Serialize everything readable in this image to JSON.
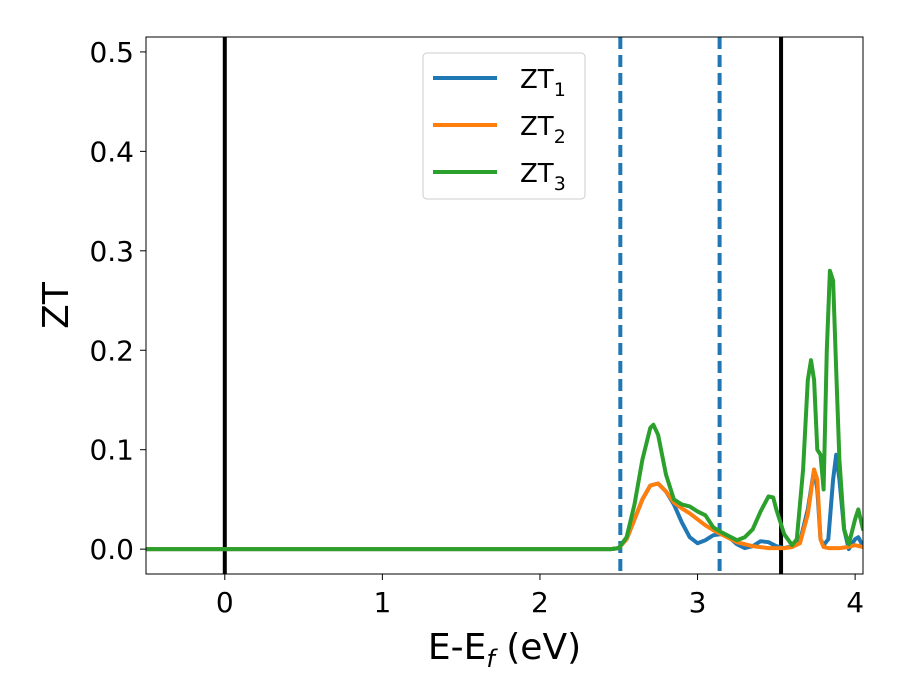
{
  "chart_data": {
    "type": "line",
    "title": "",
    "xlabel": {
      "main": "E-E",
      "sub": "f",
      "suffix": " (eV)"
    },
    "ylabel": "ZT",
    "xlim": [
      -0.5,
      4.05
    ],
    "ylim": [
      -0.025,
      0.515
    ],
    "xticks": [
      0,
      1,
      2,
      3,
      4
    ],
    "xtick_labels": [
      "0",
      "1",
      "2",
      "3",
      "4"
    ],
    "yticks": [
      0.0,
      0.1,
      0.2,
      0.3,
      0.4,
      0.5
    ],
    "ytick_labels": [
      "0.0",
      "0.1",
      "0.2",
      "0.3",
      "0.4",
      "0.5"
    ],
    "grid": false,
    "legend_position": "top-center",
    "vertical_lines": [
      {
        "x": 0.0,
        "style": "solid",
        "color": "#000000"
      },
      {
        "x": 3.53,
        "style": "solid",
        "color": "#000000"
      },
      {
        "x": 2.51,
        "style": "dashed",
        "color": "#1f77b4"
      },
      {
        "x": 3.14,
        "style": "dashed",
        "color": "#1f77b4"
      }
    ],
    "series": [
      {
        "name": "ZT",
        "name_sub": "1",
        "color": "#1f77b4",
        "points": [
          [
            -0.5,
            0
          ],
          [
            2.45,
            0
          ],
          [
            2.5,
            0.001
          ],
          [
            2.55,
            0.01
          ],
          [
            2.6,
            0.03
          ],
          [
            2.65,
            0.05
          ],
          [
            2.7,
            0.064
          ],
          [
            2.75,
            0.066
          ],
          [
            2.8,
            0.058
          ],
          [
            2.85,
            0.045
          ],
          [
            2.9,
            0.027
          ],
          [
            2.95,
            0.012
          ],
          [
            3.0,
            0.006
          ],
          [
            3.05,
            0.009
          ],
          [
            3.1,
            0.014
          ],
          [
            3.15,
            0.015
          ],
          [
            3.2,
            0.012
          ],
          [
            3.25,
            0.005
          ],
          [
            3.3,
            0.001
          ],
          [
            3.35,
            0.003
          ],
          [
            3.4,
            0.008
          ],
          [
            3.45,
            0.007
          ],
          [
            3.5,
            0.003
          ],
          [
            3.55,
            0.001
          ],
          [
            3.6,
            0.003
          ],
          [
            3.65,
            0.008
          ],
          [
            3.7,
            0.04
          ],
          [
            3.74,
            0.08
          ],
          [
            3.76,
            0.06
          ],
          [
            3.78,
            0.01
          ],
          [
            3.8,
            0.004
          ],
          [
            3.83,
            0.01
          ],
          [
            3.86,
            0.07
          ],
          [
            3.88,
            0.095
          ],
          [
            3.9,
            0.07
          ],
          [
            3.93,
            0.02
          ],
          [
            3.96,
            0.0
          ],
          [
            4.0,
            0.01
          ],
          [
            4.02,
            0.012
          ],
          [
            4.05,
            0.003
          ]
        ]
      },
      {
        "name": "ZT",
        "name_sub": "2",
        "color": "#ff7f0e",
        "points": [
          [
            -0.5,
            0
          ],
          [
            2.45,
            0
          ],
          [
            2.5,
            0.001
          ],
          [
            2.55,
            0.01
          ],
          [
            2.6,
            0.03
          ],
          [
            2.65,
            0.05
          ],
          [
            2.7,
            0.064
          ],
          [
            2.75,
            0.066
          ],
          [
            2.8,
            0.058
          ],
          [
            2.85,
            0.047
          ],
          [
            2.9,
            0.041
          ],
          [
            2.95,
            0.036
          ],
          [
            3.0,
            0.03
          ],
          [
            3.05,
            0.024
          ],
          [
            3.1,
            0.019
          ],
          [
            3.15,
            0.015
          ],
          [
            3.2,
            0.011
          ],
          [
            3.25,
            0.007
          ],
          [
            3.3,
            0.005
          ],
          [
            3.35,
            0.003
          ],
          [
            3.4,
            0.002
          ],
          [
            3.45,
            0.001
          ],
          [
            3.5,
            0.001
          ],
          [
            3.55,
            0.001
          ],
          [
            3.6,
            0.002
          ],
          [
            3.65,
            0.006
          ],
          [
            3.7,
            0.035
          ],
          [
            3.74,
            0.08
          ],
          [
            3.76,
            0.07
          ],
          [
            3.78,
            0.01
          ],
          [
            3.8,
            0.002
          ],
          [
            3.83,
            0.001
          ],
          [
            3.9,
            0.001
          ],
          [
            3.95,
            0.002
          ],
          [
            4.0,
            0.004
          ],
          [
            4.05,
            0.002
          ]
        ]
      },
      {
        "name": "ZT",
        "name_sub": "3",
        "color": "#2ca02c",
        "points": [
          [
            -0.5,
            0
          ],
          [
            2.45,
            0
          ],
          [
            2.5,
            0.001
          ],
          [
            2.55,
            0.012
          ],
          [
            2.6,
            0.045
          ],
          [
            2.65,
            0.09
          ],
          [
            2.7,
            0.122
          ],
          [
            2.72,
            0.125
          ],
          [
            2.75,
            0.115
          ],
          [
            2.8,
            0.075
          ],
          [
            2.85,
            0.05
          ],
          [
            2.9,
            0.045
          ],
          [
            2.95,
            0.043
          ],
          [
            3.0,
            0.038
          ],
          [
            3.05,
            0.034
          ],
          [
            3.1,
            0.022
          ],
          [
            3.15,
            0.017
          ],
          [
            3.2,
            0.013
          ],
          [
            3.25,
            0.009
          ],
          [
            3.3,
            0.012
          ],
          [
            3.35,
            0.02
          ],
          [
            3.4,
            0.038
          ],
          [
            3.45,
            0.053
          ],
          [
            3.48,
            0.052
          ],
          [
            3.5,
            0.04
          ],
          [
            3.55,
            0.015
          ],
          [
            3.6,
            0.004
          ],
          [
            3.63,
            0.01
          ],
          [
            3.67,
            0.08
          ],
          [
            3.7,
            0.17
          ],
          [
            3.72,
            0.19
          ],
          [
            3.74,
            0.17
          ],
          [
            3.76,
            0.1
          ],
          [
            3.78,
            0.095
          ],
          [
            3.8,
            0.06
          ],
          [
            3.82,
            0.2
          ],
          [
            3.84,
            0.28
          ],
          [
            3.86,
            0.27
          ],
          [
            3.88,
            0.18
          ],
          [
            3.9,
            0.09
          ],
          [
            3.93,
            0.02
          ],
          [
            3.96,
            0.005
          ],
          [
            4.0,
            0.03
          ],
          [
            4.02,
            0.04
          ],
          [
            4.05,
            0.02
          ]
        ]
      }
    ]
  }
}
